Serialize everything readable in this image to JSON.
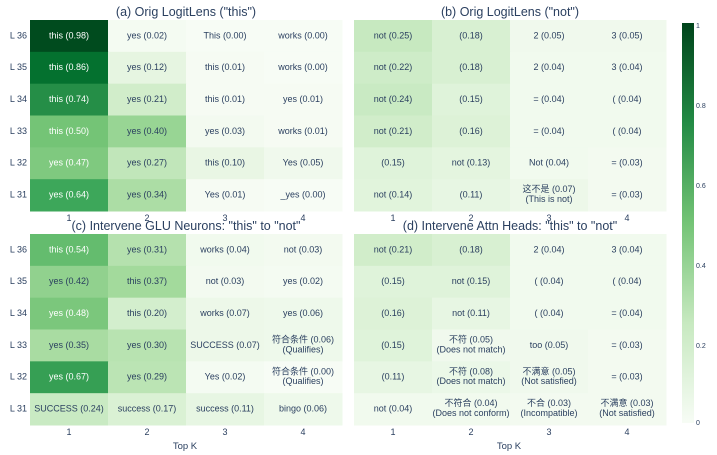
{
  "chart_data": {
    "type": "heatmap",
    "x_label": "Top K",
    "colorscale": {
      "low": "#f7fcf5",
      "mid": "#a1d99b",
      "high": "#00441b",
      "ticks": [
        "0",
        "0.2",
        "0.4",
        "0.6",
        "0.8",
        "1"
      ],
      "range": [
        0,
        1
      ]
    },
    "panels": [
      {
        "title": "(a) Orig LogitLens (\"this\")",
        "rows": [
          "L 36",
          "L 35",
          "L 34",
          "L 33",
          "L 32",
          "L 31"
        ],
        "cols": [
          "1",
          "2",
          "3",
          "4"
        ],
        "values": [
          [
            0.98,
            0.02,
            0.0,
            0.0
          ],
          [
            0.86,
            0.12,
            0.01,
            0.0
          ],
          [
            0.74,
            0.21,
            0.01,
            0.01
          ],
          [
            0.5,
            0.4,
            0.03,
            0.01
          ],
          [
            0.47,
            0.27,
            0.1,
            0.05
          ],
          [
            0.64,
            0.34,
            0.01,
            0.0
          ]
        ],
        "labels": [
          [
            "this  (0.98)",
            "yes  (0.02)",
            "This  (0.00)",
            "works  (0.00)"
          ],
          [
            "this  (0.86)",
            "yes  (0.12)",
            "this  (0.01)",
            "works  (0.00)"
          ],
          [
            "this  (0.74)",
            "yes  (0.21)",
            "this  (0.01)",
            "yes  (0.01)"
          ],
          [
            "this  (0.50)",
            "yes  (0.40)",
            "yes  (0.03)",
            "works  (0.01)"
          ],
          [
            "yes  (0.47)",
            "yes  (0.27)",
            "this  (0.10)",
            "Yes  (0.05)"
          ],
          [
            "yes  (0.64)",
            "yes  (0.34)",
            "Yes  (0.01)",
            "_yes  (0.00)"
          ]
        ]
      },
      {
        "title": "(b) Orig LogitLens (\"not\")",
        "rows": [
          "L 36",
          "L 35",
          "L 34",
          "L 33",
          "L 32",
          "L 31"
        ],
        "cols": [
          "1",
          "2",
          "3",
          "4"
        ],
        "values": [
          [
            0.25,
            0.18,
            0.05,
            0.05
          ],
          [
            0.22,
            0.18,
            0.04,
            0.04
          ],
          [
            0.24,
            0.15,
            0.04,
            0.04
          ],
          [
            0.21,
            0.16,
            0.04,
            0.04
          ],
          [
            0.15,
            0.13,
            0.04,
            0.03
          ],
          [
            0.14,
            0.11,
            0.07,
            0.03
          ]
        ],
        "labels": [
          [
            "not  (0.25)",
            "(0.18)",
            "2  (0.05)",
            "3  (0.05)"
          ],
          [
            "not  (0.22)",
            "(0.18)",
            "2  (0.04)",
            "3  (0.04)"
          ],
          [
            "not  (0.24)",
            "(0.15)",
            "=  (0.04)",
            "(  (0.04)"
          ],
          [
            "not  (0.21)",
            "(0.16)",
            "=  (0.04)",
            "(  (0.04)"
          ],
          [
            "(0.15)",
            "not  (0.13)",
            "Not  (0.04)",
            "=  (0.03)"
          ],
          [
            "not  (0.14)",
            "(0.11)",
            "这不是  (0.07)\n(This is not)",
            "=  (0.03)"
          ]
        ]
      },
      {
        "title": "(c) Intervene GLU Neurons: \"this\" to \"not\"",
        "rows": [
          "L 36",
          "L 35",
          "L 34",
          "L 33",
          "L 32",
          "L 31"
        ],
        "cols": [
          "1",
          "2",
          "3",
          "4"
        ],
        "values": [
          [
            0.54,
            0.31,
            0.04,
            0.03
          ],
          [
            0.42,
            0.37,
            0.03,
            0.02
          ],
          [
            0.48,
            0.2,
            0.07,
            0.06
          ],
          [
            0.35,
            0.3,
            0.07,
            0.06
          ],
          [
            0.67,
            0.29,
            0.02,
            0.0
          ],
          [
            0.24,
            0.17,
            0.11,
            0.06
          ]
        ],
        "labels": [
          [
            "this  (0.54)",
            "yes  (0.31)",
            "works  (0.04)",
            "not  (0.03)"
          ],
          [
            "yes  (0.42)",
            "this  (0.37)",
            "not  (0.03)",
            "yes  (0.02)"
          ],
          [
            "yes  (0.48)",
            "this  (0.20)",
            "works  (0.07)",
            "yes  (0.06)"
          ],
          [
            "yes  (0.35)",
            "yes  (0.30)",
            "SUCCESS  (0.07)",
            "符合条件  (0.06)\n(Qualifies)"
          ],
          [
            "yes  (0.67)",
            "yes  (0.29)",
            "Yes  (0.02)",
            "符合条件  (0.00)\n(Qualifies)"
          ],
          [
            "SUCCESS  (0.24)",
            "success  (0.17)",
            "success  (0.11)",
            "bingo  (0.06)"
          ]
        ]
      },
      {
        "title": "(d) Intervene Attn Heads: \"this\" to \"not\"",
        "rows": [
          "L 36",
          "L 35",
          "L 34",
          "L 33",
          "L 32",
          "L 31"
        ],
        "cols": [
          "1",
          "2",
          "3",
          "4"
        ],
        "values": [
          [
            0.21,
            0.18,
            0.04,
            0.04
          ],
          [
            0.15,
            0.15,
            0.04,
            0.04
          ],
          [
            0.16,
            0.11,
            0.04,
            0.04
          ],
          [
            0.15,
            0.05,
            0.05,
            0.03
          ],
          [
            0.11,
            0.08,
            0.05,
            0.03
          ],
          [
            0.04,
            0.04,
            0.03,
            0.03
          ]
        ],
        "labels": [
          [
            "not  (0.21)",
            "(0.18)",
            "2  (0.04)",
            "3  (0.04)"
          ],
          [
            "(0.15)",
            "not  (0.15)",
            "(  (0.04)",
            "(  (0.04)"
          ],
          [
            "(0.16)",
            "not  (0.11)",
            "(  (0.04)",
            "=  (0.04)"
          ],
          [
            "(0.15)",
            "不符  (0.05)\n(Does not match)",
            "too  (0.05)",
            "=  (0.03)"
          ],
          [
            "(0.11)",
            "不符  (0.08)\n(Does not match)",
            "不满意  (0.05)\n(Not satisfied)",
            "=  (0.03)"
          ],
          [
            "not  (0.04)",
            "不符合  (0.04)\n(Does not conform)",
            "不合  (0.03)\n(Incompatible)",
            "不满意  (0.03)\n(Not satisfied)"
          ]
        ]
      }
    ]
  }
}
